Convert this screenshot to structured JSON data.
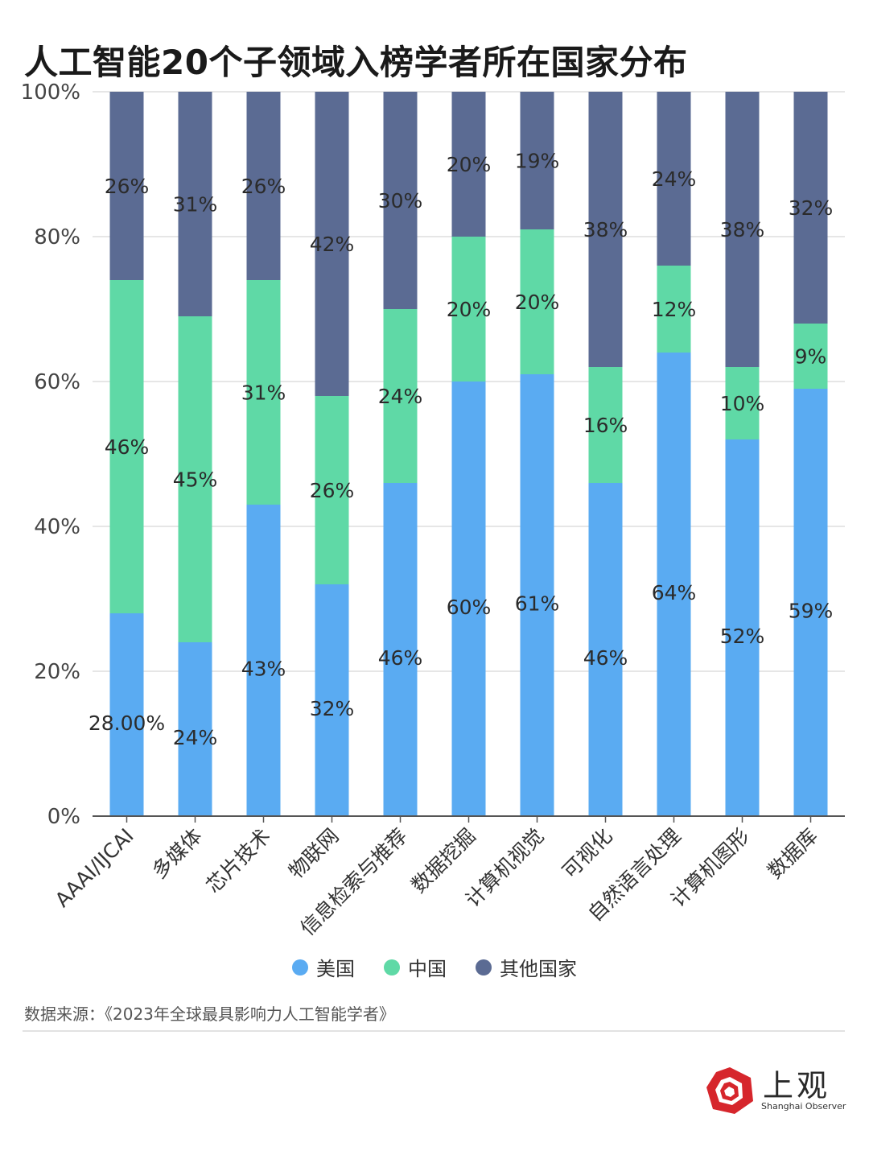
{
  "title": "人工智能20个子领域入榜学者所在国家分布",
  "source": "数据来源：《2023年全球最具影响力人工智能学者》",
  "logo": {
    "cn": "上观",
    "en": "Shanghai Observer",
    "icon": "shanghai-observer-logo-icon",
    "color": "#d6262c"
  },
  "colors": {
    "us": "#5aabf2",
    "cn": "#5fd9a6",
    "other": "#5b6b93",
    "grid": "#dddddd",
    "axis": "#555555"
  },
  "chart_data": {
    "type": "bar",
    "stacked": true,
    "ylim": [
      0,
      100
    ],
    "yticks": [
      "0%",
      "20%",
      "40%",
      "60%",
      "80%",
      "100%"
    ],
    "grid": true,
    "legend_position": "bottom",
    "categories": [
      "AAAI/IJCAI",
      "多媒体",
      "芯片技术",
      "物联网",
      "信息检索与推荐",
      "数据挖掘",
      "计算机视觉",
      "可视化",
      "自然语言处理",
      "计算机图形",
      "数据库"
    ],
    "series": [
      {
        "name": "美国",
        "values": [
          28,
          24,
          43,
          32,
          46,
          60,
          61,
          46,
          64,
          52,
          59
        ],
        "labels": [
          "28.00%",
          "24%",
          "43%",
          "32%",
          "46%",
          "60%",
          "61%",
          "46%",
          "64%",
          "52%",
          "59%"
        ]
      },
      {
        "name": "中国",
        "values": [
          46,
          45,
          31,
          26,
          24,
          20,
          20,
          16,
          12,
          10,
          9
        ],
        "labels": [
          "46%",
          "45%",
          "31%",
          "26%",
          "24%",
          "20%",
          "20%",
          "16%",
          "12%",
          "10%",
          "9%"
        ]
      },
      {
        "name": "其他国家",
        "values": [
          26,
          31,
          26,
          42,
          30,
          20,
          19,
          38,
          24,
          38,
          32
        ],
        "labels": [
          "26%",
          "31%",
          "26%",
          "42%",
          "30%",
          "20%",
          "19%",
          "38%",
          "24%",
          "38%",
          "32%"
        ]
      }
    ]
  }
}
